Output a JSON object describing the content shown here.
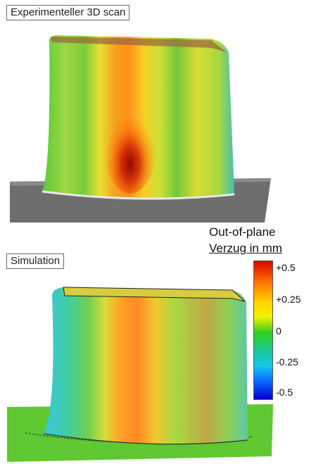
{
  "labels": {
    "scan": "Experimenteller 3D scan",
    "simulation": "Simulation"
  },
  "legend": {
    "title_line1": "Out-of-plane",
    "title_line2": "Verzug in mm",
    "ticks": [
      "+0.5",
      "+0.25",
      "0",
      "-0.25",
      "-0.5"
    ]
  },
  "colors": {
    "max": "#e00000",
    "upper": "#ffd400",
    "zero": "#2fd020",
    "lower": "#10c8f0",
    "min": "#0000c8",
    "scan_base": "#6e6e6e",
    "sim_base": "#5fc832"
  }
}
